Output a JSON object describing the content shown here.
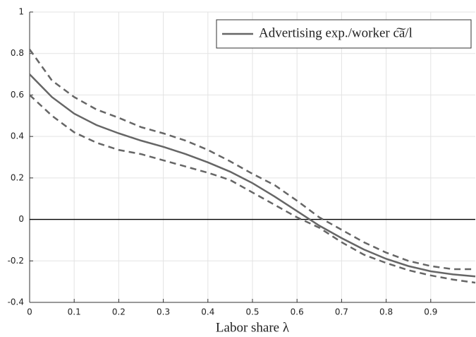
{
  "chart_data": {
    "type": "line",
    "xlabel": "Labor share λ",
    "x": [
      0,
      0.05,
      0.1,
      0.15,
      0.2,
      0.25,
      0.3,
      0.35,
      0.4,
      0.45,
      0.5,
      0.55,
      0.6,
      0.65,
      0.7,
      0.75,
      0.8,
      0.85,
      0.9,
      0.95,
      1
    ],
    "series": [
      {
        "name": "Advertising exp./worker c͠a/l",
        "color": "#666666",
        "dash": false,
        "values": [
          0.7,
          0.59,
          0.51,
          0.455,
          0.415,
          0.38,
          0.35,
          0.315,
          0.275,
          0.23,
          0.175,
          0.11,
          0.04,
          -0.03,
          -0.09,
          -0.145,
          -0.19,
          -0.225,
          -0.25,
          -0.265,
          -0.275
        ]
      },
      {
        "color": "#666666",
        "dash": true,
        "values": [
          0.82,
          0.67,
          0.59,
          0.53,
          0.49,
          0.445,
          0.415,
          0.38,
          0.335,
          0.28,
          0.22,
          0.165,
          0.09,
          0.01,
          -0.05,
          -0.11,
          -0.16,
          -0.2,
          -0.225,
          -0.24,
          -0.24
        ]
      },
      {
        "color": "#666666",
        "dash": true,
        "values": [
          0.6,
          0.5,
          0.42,
          0.37,
          0.335,
          0.315,
          0.285,
          0.255,
          0.225,
          0.19,
          0.13,
          0.07,
          0.01,
          -0.04,
          -0.11,
          -0.17,
          -0.21,
          -0.245,
          -0.27,
          -0.29,
          -0.305
        ]
      }
    ],
    "xlim": [
      0,
      1
    ],
    "xticks": [
      0,
      0.1,
      0.2,
      0.3,
      0.4,
      0.5,
      0.6,
      0.7,
      0.8,
      0.9
    ],
    "ylim": [
      -0.4,
      1
    ],
    "yticks": [
      -0.4,
      -0.2,
      0,
      0.2,
      0.4,
      0.6,
      0.8,
      1
    ],
    "hline": 0,
    "grid": true,
    "legend": "upper right"
  }
}
